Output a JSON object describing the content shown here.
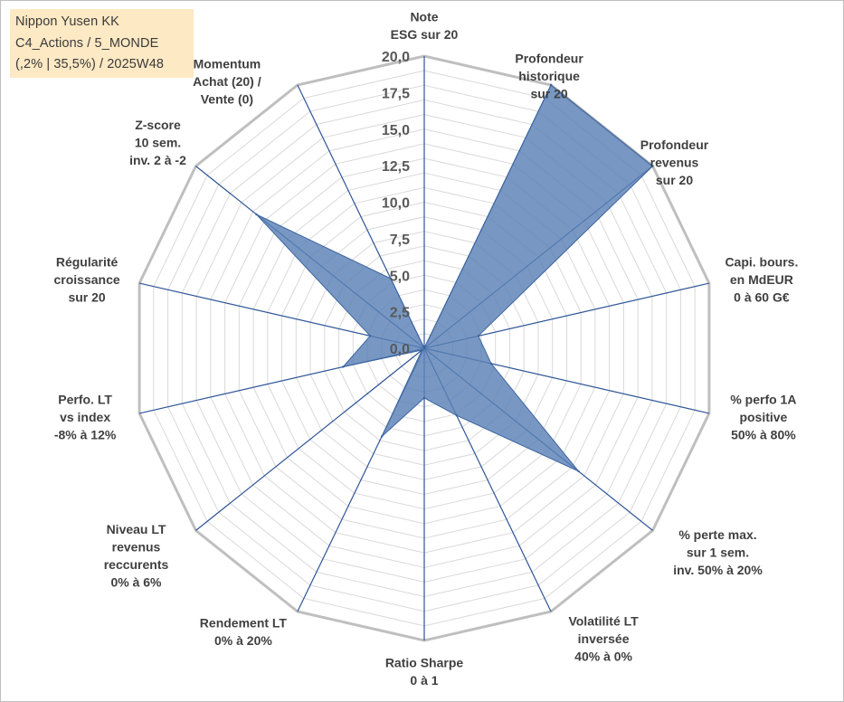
{
  "info_box": {
    "line1": "Nippon Yusen KK",
    "line2": "C4_Actions / 5_MONDE",
    "line3": "(,2% | 35,5%) / 2025W48"
  },
  "chart_data": {
    "type": "radar",
    "title": "Nippon Yusen KK",
    "rlim": [
      0,
      20
    ],
    "tick_values": [
      0,
      2.5,
      5,
      7.5,
      10,
      12.5,
      15,
      17.5,
      20
    ],
    "tick_labels": [
      "0,0",
      "2,5",
      "5,0",
      "7,5",
      "10,0",
      "12,5",
      "15,0",
      "17,5",
      "20,0"
    ],
    "categories": [
      [
        "Note",
        "ESG sur 20"
      ],
      [
        "Profondeur",
        "historique",
        "sur 20"
      ],
      [
        "Profondeur",
        "revenus",
        "sur 20"
      ],
      [
        "Capi. bours.",
        "en MdEUR",
        "0 à 60 G€"
      ],
      [
        "% perfo 1A",
        "positive",
        "50% à 80%"
      ],
      [
        "% perte max.",
        "sur 1 sem.",
        "inv. 50% à 20%"
      ],
      [
        "Volatilité LT",
        "inversée",
        "40% à 0%"
      ],
      [
        "Ratio Sharpe",
        "0 à 1"
      ],
      [
        "Rendement LT",
        "0% à 20%"
      ],
      [
        "Niveau LT",
        "revenus",
        "reccurents",
        "0% à 6%"
      ],
      [
        "Perfo. LT",
        "vs index",
        "-8% à 12%"
      ],
      [
        "Régularité",
        "croissance",
        "sur 20"
      ],
      [
        "Z-score",
        "10 sem.",
        "inv. 2 à -2"
      ],
      [
        "Momentum",
        "Achat (20) /",
        "Vente (0)"
      ]
    ],
    "series": [
      {
        "name": "Nippon Yusen KK",
        "values": [
          0.0,
          20.0,
          20.0,
          3.8,
          4.7,
          13.5,
          5.1,
          3.4,
          6.7,
          0.2,
          5.7,
          3.8,
          14.7,
          5.3
        ]
      }
    ],
    "grid": true,
    "legend": "none"
  }
}
